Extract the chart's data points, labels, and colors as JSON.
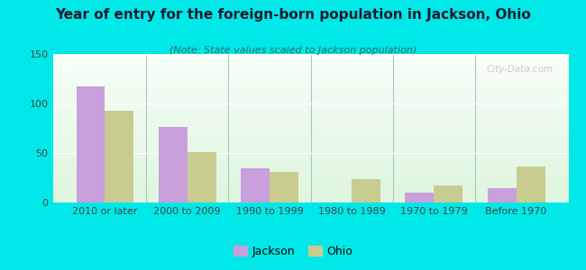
{
  "title": "Year of entry for the foreign-born population in Jackson, Ohio",
  "subtitle": "(Note: State values scaled to Jackson population)",
  "categories": [
    "2010 or later",
    "2000 to 2009",
    "1990 to 1999",
    "1980 to 1989",
    "1970 to 1979",
    "Before 1970"
  ],
  "jackson_values": [
    117,
    76,
    35,
    0,
    10,
    15
  ],
  "ohio_values": [
    93,
    51,
    31,
    24,
    17,
    36
  ],
  "jackson_color": "#c9a0dc",
  "ohio_color": "#c8cc90",
  "ylim": [
    0,
    150
  ],
  "yticks": [
    0,
    50,
    100,
    150
  ],
  "background_outer": "#00e8e8",
  "watermark": "City-Data.com",
  "legend_jackson": "Jackson",
  "legend_ohio": "Ohio",
  "bar_width": 0.35,
  "title_fontsize": 11,
  "subtitle_fontsize": 8,
  "tick_fontsize": 8
}
